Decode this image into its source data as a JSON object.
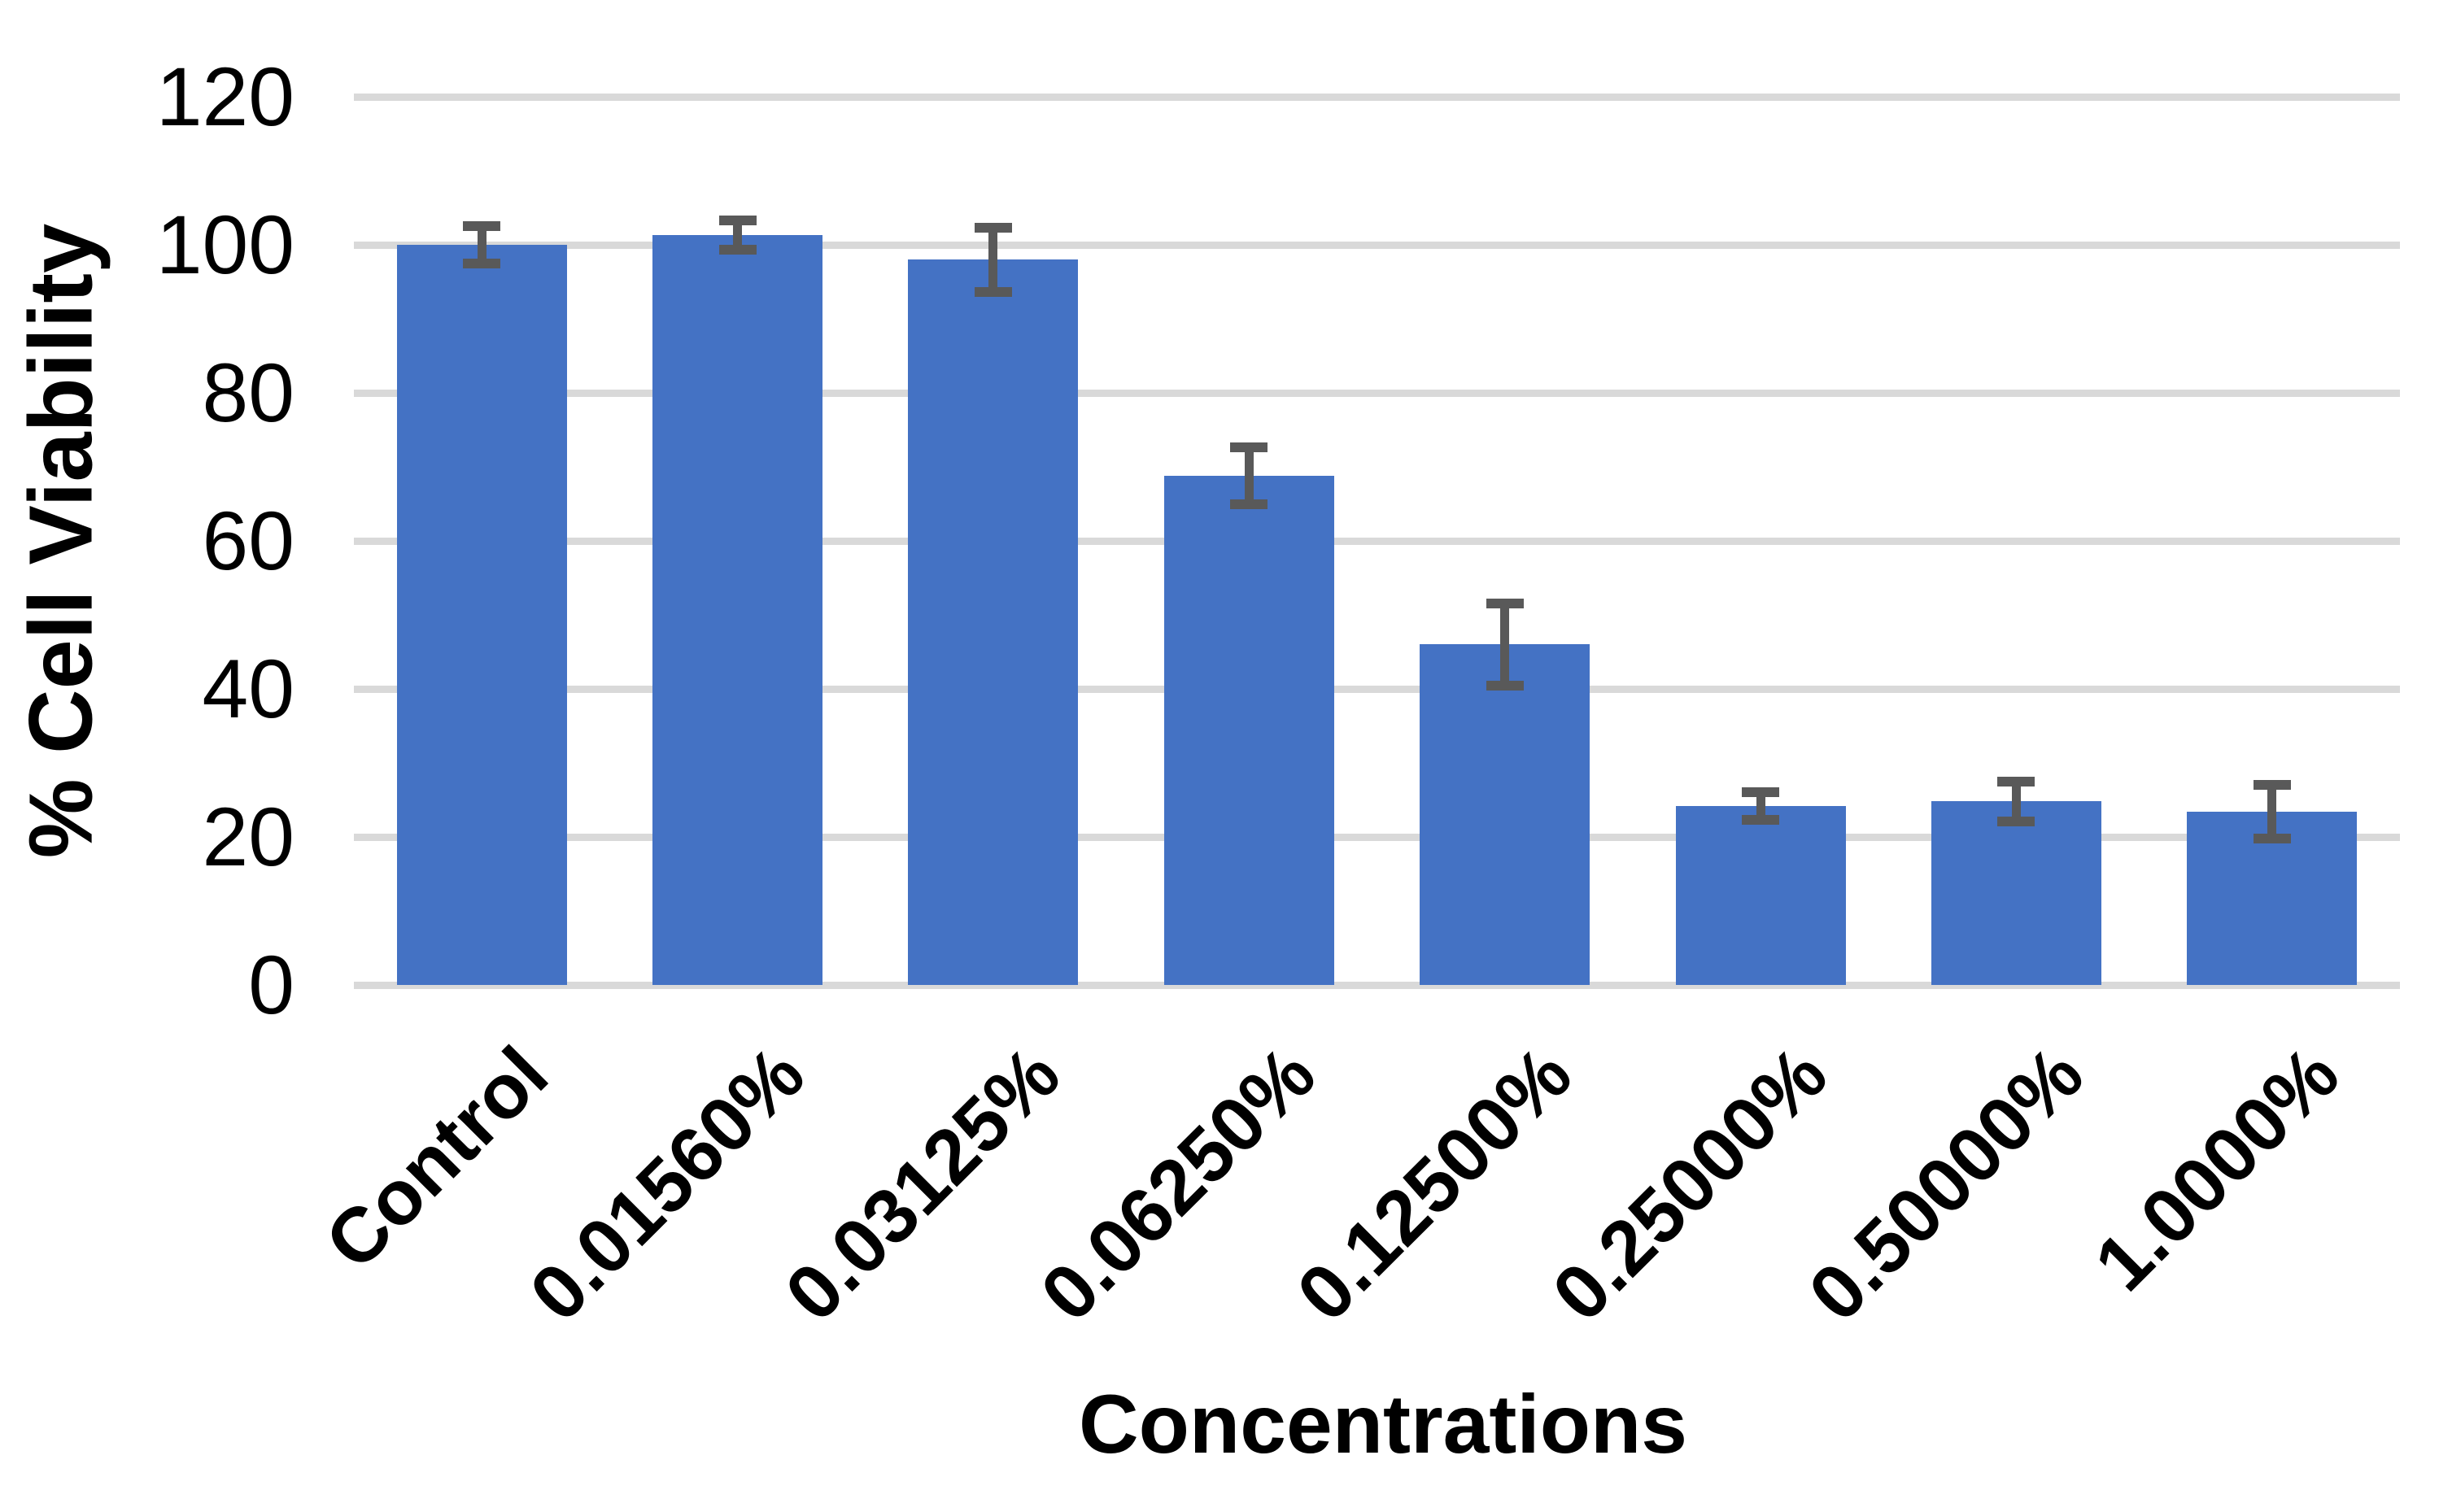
{
  "chart_data": {
    "type": "bar",
    "title": "",
    "xlabel": "Concentrations",
    "ylabel": "% Cell Viability",
    "categories": [
      "Control",
      "0.01560%",
      "0.03125%",
      "0.06250%",
      "0.12500%",
      "0.25000%",
      "0.50000%",
      "1.0000%"
    ],
    "values": [
      100,
      101.3,
      98,
      68.8,
      46,
      24.2,
      24.8,
      23.4
    ],
    "error_bars": [
      1.9,
      1.3,
      3.7,
      3.2,
      4.9,
      1.2,
      2.0,
      3.0
    ],
    "ylim": [
      0,
      120
    ],
    "yticks": [
      0,
      20,
      40,
      60,
      80,
      100,
      120
    ],
    "grid": "horizontal",
    "legend": "none",
    "bar_color": "#4472C4",
    "error_color": "#595959",
    "gridline_color": "#D9D9D9",
    "text_color": "#000000",
    "x_label_rotation_deg": 45
  }
}
